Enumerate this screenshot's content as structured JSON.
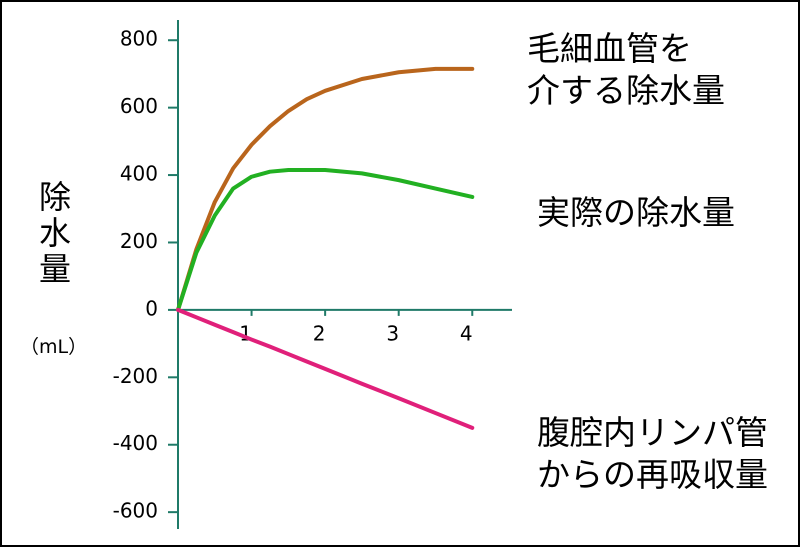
{
  "chart_data": {
    "type": "line",
    "y_label": "除水量",
    "y_unit": "（mL）",
    "xlim": [
      0,
      4.54
    ],
    "xticks": [
      1,
      2,
      3,
      4
    ],
    "ylim": [
      -650,
      860
    ],
    "yticks": [
      -600,
      -400,
      -200,
      0,
      200,
      400,
      600,
      800
    ],
    "x": [
      0,
      0.25,
      0.5,
      0.75,
      1,
      1.25,
      1.5,
      1.75,
      2,
      2.5,
      3,
      3.5,
      4
    ],
    "series": [
      {
        "name": "毛細血管を\n介する除水量",
        "color": "#b9651c",
        "values": [
          0,
          180,
          320,
          420,
          490,
          545,
          590,
          625,
          650,
          685,
          705,
          715,
          715
        ]
      },
      {
        "name": "実際の除水量",
        "color": "#22b022",
        "values": [
          0,
          170,
          280,
          360,
          395,
          410,
          415,
          415,
          415,
          405,
          385,
          360,
          335
        ]
      },
      {
        "name": "腹腔内リンパ管\nからの再吸収量",
        "color": "#e0207a",
        "values": [
          0,
          -22,
          -44,
          -66,
          -88,
          -109,
          -131,
          -153,
          -175,
          -219,
          -262,
          -306,
          -350
        ]
      }
    ]
  }
}
